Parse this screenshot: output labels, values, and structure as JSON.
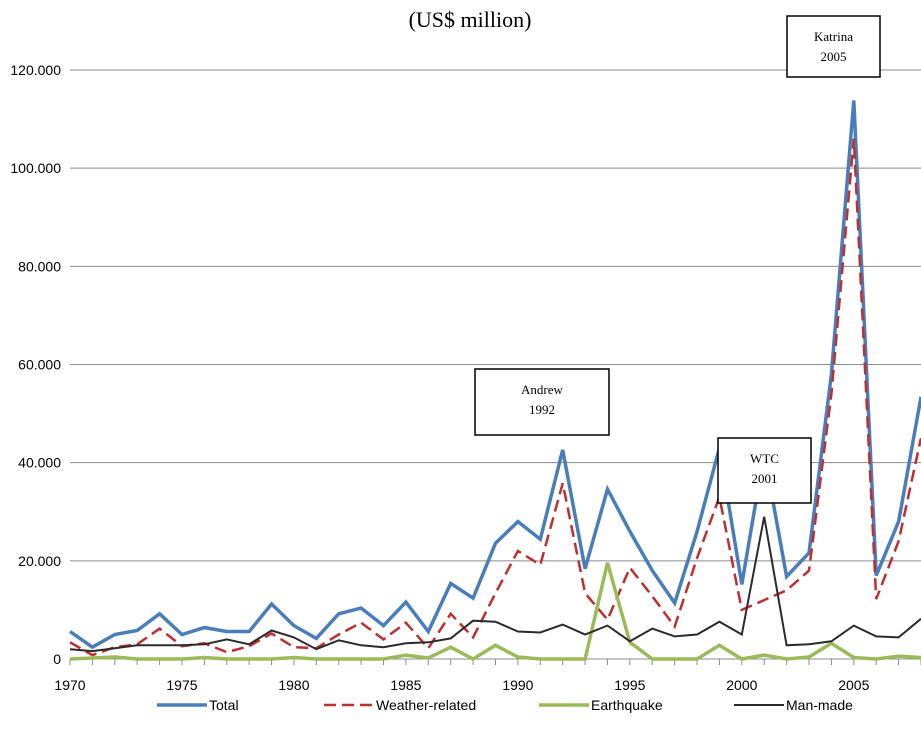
{
  "chart_data": {
    "type": "line",
    "title": "(US$ million)",
    "x": [
      1970,
      1971,
      1972,
      1973,
      1974,
      1975,
      1976,
      1977,
      1978,
      1979,
      1980,
      1981,
      1982,
      1983,
      1984,
      1985,
      1986,
      1987,
      1988,
      1989,
      1990,
      1991,
      1992,
      1993,
      1994,
      1995,
      1996,
      1997,
      1998,
      1999,
      2000,
      2001,
      2002,
      2003,
      2004,
      2005,
      2006,
      2007,
      2008
    ],
    "xlim": [
      1970,
      2008
    ],
    "ylim": [
      0,
      120000
    ],
    "x_ticks": [
      {
        "value": 1970,
        "label": "1970"
      },
      {
        "value": 1975,
        "label": "1975"
      },
      {
        "value": 1980,
        "label": "1980"
      },
      {
        "value": 1985,
        "label": "1985"
      },
      {
        "value": 1990,
        "label": "1990"
      },
      {
        "value": 1995,
        "label": "1995"
      },
      {
        "value": 2000,
        "label": "2000"
      },
      {
        "value": 2005,
        "label": "2005"
      }
    ],
    "y_ticks": [
      {
        "value": 0,
        "label": "0"
      },
      {
        "value": 20000,
        "label": "20.000"
      },
      {
        "value": 40000,
        "label": "40.000"
      },
      {
        "value": 60000,
        "label": "60.000"
      },
      {
        "value": 80000,
        "label": "80.000"
      },
      {
        "value": 100000,
        "label": "100.000"
      },
      {
        "value": 120000,
        "label": "120.000"
      }
    ],
    "grid": "horizontal",
    "legend_position": "bottom",
    "series": [
      {
        "name": "Total",
        "color": "#4a7ebb",
        "style": "solid",
        "values": [
          5600,
          2400,
          5000,
          5800,
          9200,
          5000,
          6400,
          5600,
          5600,
          11200,
          6800,
          4200,
          9200,
          10400,
          6800,
          11600,
          5600,
          15400,
          12400,
          23600,
          28000,
          24400,
          42600,
          18400,
          34600,
          26000,
          18000,
          11400,
          26000,
          43000,
          15200,
          42000,
          16800,
          21600,
          58000,
          113800,
          17000,
          28000,
          53400
        ]
      },
      {
        "name": "Weather-related",
        "color": "#be2f2f",
        "style": "dashed",
        "values": [
          3400,
          800,
          2400,
          3000,
          6200,
          2600,
          3200,
          1400,
          2600,
          5200,
          2400,
          2200,
          5000,
          7400,
          4000,
          7400,
          2200,
          9200,
          4400,
          13400,
          22000,
          19200,
          35800,
          13400,
          8000,
          18600,
          12800,
          6600,
          20600,
          33000,
          10000,
          12000,
          14000,
          18000,
          54000,
          106000,
          12200,
          24000,
          45000
        ]
      },
      {
        "name": "Earthquake",
        "color": "#9bbb59",
        "style": "solid",
        "values": [
          0,
          200,
          400,
          0,
          0,
          0,
          300,
          0,
          0,
          0,
          300,
          0,
          0,
          0,
          0,
          800,
          200,
          2400,
          0,
          2800,
          400,
          0,
          0,
          0,
          19600,
          3400,
          0,
          0,
          0,
          2800,
          0,
          800,
          0,
          400,
          3200,
          300,
          0,
          600,
          300
        ]
      },
      {
        "name": "Man-made",
        "color": "#2b2b2b",
        "style": "solid",
        "values": [
          2000,
          1600,
          2200,
          2800,
          2800,
          2800,
          3000,
          4000,
          3000,
          5800,
          4400,
          2000,
          3800,
          2800,
          2400,
          3200,
          3400,
          4200,
          7800,
          7600,
          5600,
          5400,
          7000,
          5000,
          6800,
          3600,
          6200,
          4600,
          5000,
          7600,
          5000,
          29000,
          2800,
          3000,
          3600,
          6800,
          4600,
          4400,
          8200
        ]
      }
    ],
    "annotations": [
      {
        "lines": [
          "Andrew",
          "1992"
        ]
      },
      {
        "lines": [
          "WTC",
          "2001"
        ]
      },
      {
        "lines": [
          "Katrina",
          "2005"
        ]
      }
    ]
  }
}
